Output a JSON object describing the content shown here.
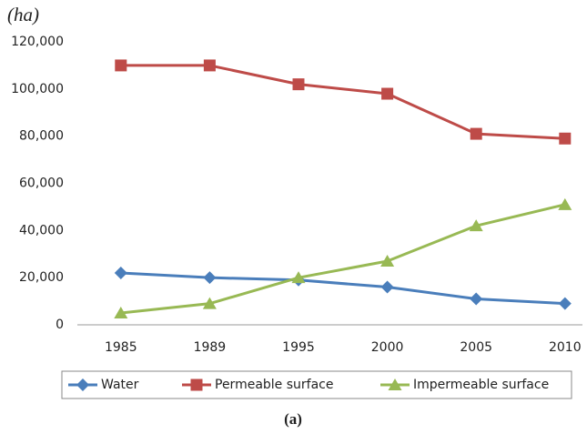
{
  "chart_data": {
    "type": "line",
    "y_label": "(ha)",
    "caption": "(a)",
    "categories": [
      "1985",
      "1989",
      "1995",
      "2000",
      "2005",
      "2010"
    ],
    "series": [
      {
        "name": "Water",
        "color": "#4a7ebb",
        "marker": "diamond",
        "values": [
          22000,
          20000,
          19000,
          16000,
          11000,
          9000
        ]
      },
      {
        "name": "Permeable surface",
        "color": "#be4b48",
        "marker": "square",
        "values": [
          110000,
          110000,
          102000,
          98000,
          81000,
          79000
        ]
      },
      {
        "name": "Impermeable surface",
        "color": "#98b954",
        "marker": "triangle",
        "values": [
          5000,
          9000,
          20000,
          27000,
          42000,
          51000
        ]
      }
    ],
    "ylim": [
      0,
      120000
    ],
    "yticks": [
      0,
      {
        "value": 20000,
        "label": "20,000"
      },
      {
        "value": 40000,
        "label": "40,000"
      },
      {
        "value": 60000,
        "label": "60,000"
      },
      {
        "value": 80000,
        "label": "80,000"
      },
      {
        "value": 100000,
        "label": "100,000"
      },
      {
        "value": 120000,
        "label": "120,000"
      }
    ],
    "grid": false,
    "legend": "bottom"
  }
}
